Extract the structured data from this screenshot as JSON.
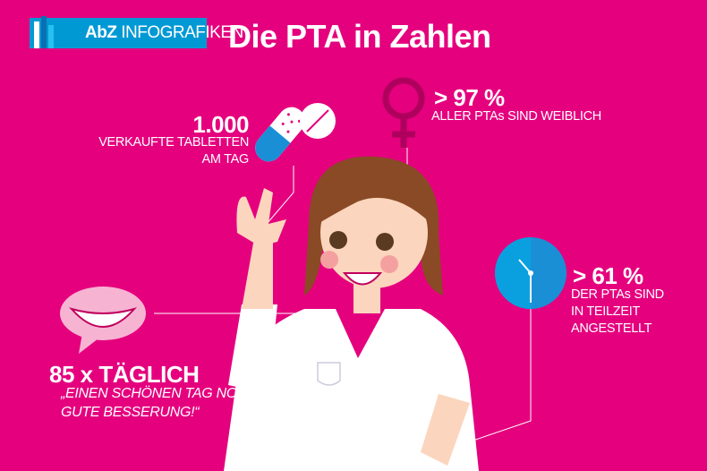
{
  "header": {
    "logo_brand": "AbZ",
    "logo_label": "INFOGRAFIKEN",
    "title": "Die PTA in Zahlen"
  },
  "facts": [
    {
      "value": "1.000",
      "lines": [
        "VERKAUFTE TABLETTEN",
        "AM TAG"
      ],
      "icon": "pill-icon"
    },
    {
      "value": "> 97 %",
      "lines": [
        "ALLER PTAs SIND WEIBLICH"
      ],
      "icon": "female-symbol-icon"
    },
    {
      "value": "> 61 %",
      "lines": [
        "DER PTAs SIND",
        "IN TEILZEIT",
        "ANGESTELLT"
      ],
      "icon": "clock-icon"
    },
    {
      "value": "85 x TÄGLICH",
      "lines": [
        "„EINEN SCHÖNEN TAG NOCH UND",
        "GUTE BESSERUNG!“"
      ],
      "icon": "smile-bubble-icon"
    }
  ],
  "colors": {
    "background": "#e5007e",
    "logo_blue": "#0099d4",
    "clock_blue": "#1a8fd6"
  }
}
